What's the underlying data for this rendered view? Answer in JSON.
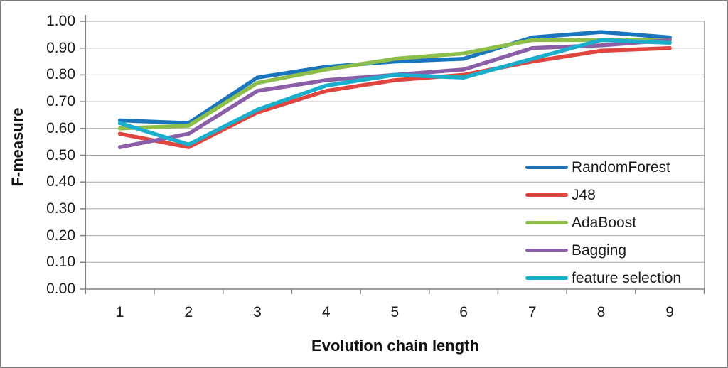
{
  "chart_data": {
    "type": "line",
    "title": "",
    "xlabel": "Evolution chain length",
    "ylabel": "F-measure",
    "categories": [
      "1",
      "2",
      "3",
      "4",
      "5",
      "6",
      "7",
      "8",
      "9"
    ],
    "y_ticks": [
      "1.00",
      "0.90",
      "0.80",
      "0.70",
      "0.60",
      "0.50",
      "0.40",
      "0.30",
      "0.20",
      "0.10",
      "0.00"
    ],
    "ylim": [
      0.0,
      1.0
    ],
    "grid": "horizontal",
    "legend_position": "right-overlay",
    "axis_color": "#808080",
    "gridline_color": "#a6a6a6",
    "series": [
      {
        "name": "RandomForest",
        "color": "#1b75bc",
        "values": [
          0.63,
          0.62,
          0.79,
          0.83,
          0.85,
          0.86,
          0.94,
          0.96,
          0.94
        ]
      },
      {
        "name": "J48",
        "color": "#e0453e",
        "values": [
          0.58,
          0.53,
          0.66,
          0.74,
          0.78,
          0.8,
          0.85,
          0.89,
          0.9
        ]
      },
      {
        "name": "AdaBoost",
        "color": "#8cbe4a",
        "values": [
          0.6,
          0.61,
          0.77,
          0.82,
          0.86,
          0.88,
          0.93,
          0.93,
          0.93
        ]
      },
      {
        "name": "Bagging",
        "color": "#8a5fa8",
        "values": [
          0.53,
          0.58,
          0.74,
          0.78,
          0.8,
          0.82,
          0.9,
          0.91,
          0.93
        ]
      },
      {
        "name": "feature selection",
        "color": "#19aecc",
        "values": [
          0.62,
          0.54,
          0.67,
          0.76,
          0.8,
          0.79,
          0.86,
          0.93,
          0.92
        ]
      }
    ]
  }
}
